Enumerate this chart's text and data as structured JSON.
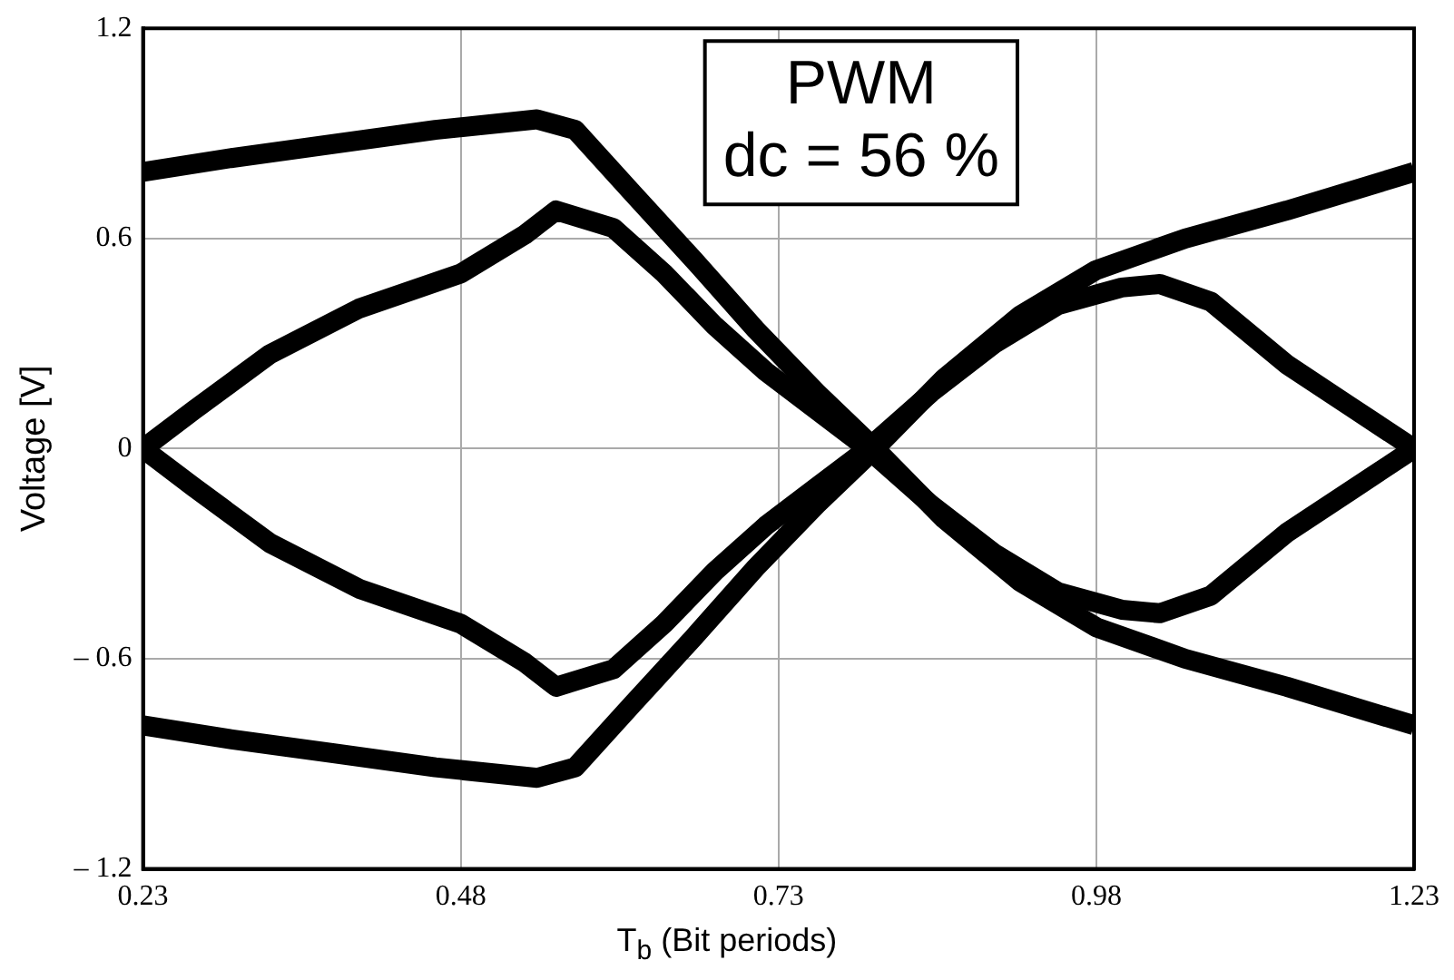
{
  "chart_data": {
    "type": "line",
    "xlabel": "T$_{b}$ (Bit periods)",
    "ylabel": "Voltage [V]",
    "xlim": [
      0.23,
      1.23
    ],
    "ylim": [
      -1.2,
      1.2
    ],
    "xticks": [
      0.23,
      0.48,
      0.73,
      0.98,
      1.23
    ],
    "yticks": [
      {
        "value": -1.2,
        "label": "– 1.2"
      },
      {
        "value": -0.6,
        "label": "– 0.6"
      },
      0,
      0.6,
      1.2
    ],
    "grid": true,
    "annotations": [
      "PWM",
      "dc = 56 %"
    ],
    "series": [
      {
        "color": "#000000",
        "x": [
          0.23,
          0.3,
          0.38,
          0.46,
          0.54,
          0.57,
          0.615,
          0.663,
          0.712,
          0.76,
          0.806,
          0.86,
          0.92,
          0.98,
          1.05,
          1.13,
          1.23
        ],
        "values": [
          0.79,
          0.83,
          0.87,
          0.91,
          0.94,
          0.91,
          0.73,
          0.54,
          0.34,
          0.16,
          0,
          -0.2,
          -0.38,
          -0.51,
          -0.6,
          -0.68,
          -0.79
        ]
      },
      {
        "color": "#000000",
        "x": [
          0.23,
          0.27,
          0.33,
          0.4,
          0.48,
          0.53,
          0.555,
          0.6,
          0.64,
          0.68,
          0.72,
          0.76,
          0.8,
          0.85,
          0.9,
          0.95,
          1.0,
          1.03,
          1.07,
          1.13,
          1.18,
          1.23
        ],
        "values": [
          0,
          0.11,
          0.27,
          0.4,
          0.5,
          0.61,
          0.68,
          0.63,
          0.5,
          0.35,
          0.22,
          0.11,
          0,
          -0.16,
          -0.3,
          -0.41,
          -0.46,
          -0.47,
          -0.42,
          -0.24,
          -0.12,
          0
        ]
      },
      {
        "color": "#000000",
        "x": [
          0.23,
          0.27,
          0.33,
          0.4,
          0.48,
          0.53,
          0.555,
          0.6,
          0.64,
          0.68,
          0.72,
          0.76,
          0.8,
          0.85,
          0.9,
          0.95,
          1.0,
          1.03,
          1.07,
          1.13,
          1.18,
          1.23
        ],
        "values": [
          0,
          -0.11,
          -0.27,
          -0.4,
          -0.5,
          -0.61,
          -0.68,
          -0.63,
          -0.5,
          -0.35,
          -0.22,
          -0.11,
          0,
          0.16,
          0.3,
          0.41,
          0.46,
          0.47,
          0.42,
          0.24,
          0.12,
          0
        ]
      },
      {
        "color": "#000000",
        "x": [
          0.23,
          0.3,
          0.38,
          0.46,
          0.54,
          0.57,
          0.615,
          0.663,
          0.712,
          0.76,
          0.806,
          0.86,
          0.92,
          0.98,
          1.05,
          1.13,
          1.23
        ],
        "values": [
          -0.79,
          -0.83,
          -0.87,
          -0.91,
          -0.94,
          -0.91,
          -0.73,
          -0.54,
          -0.34,
          -0.16,
          0,
          0.2,
          0.38,
          0.51,
          0.6,
          0.68,
          0.79
        ]
      }
    ]
  }
}
